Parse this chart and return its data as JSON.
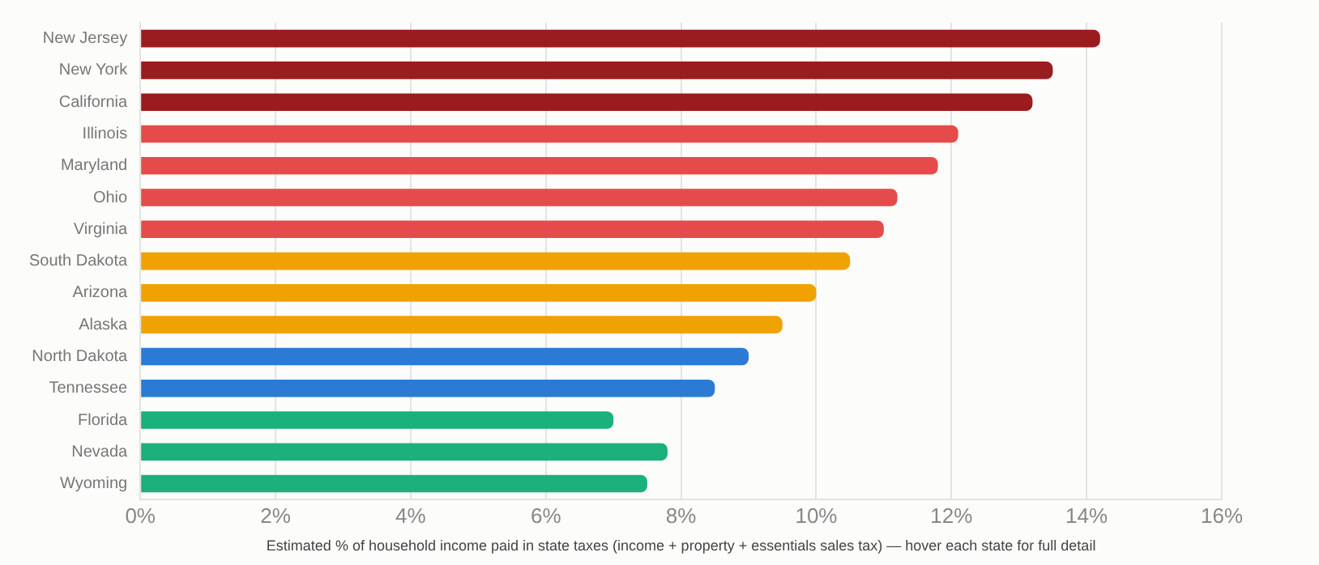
{
  "chart_data": {
    "type": "bar",
    "orientation": "horizontal",
    "xlabel": "Estimated % of household income paid in state taxes (income + property + essentials sales tax) — hover each state for full detail",
    "categories": [
      "New Jersey",
      "New York",
      "California",
      "Illinois",
      "Maryland",
      "Ohio",
      "Virginia",
      "South Dakota",
      "Arizona",
      "Alaska",
      "North Dakota",
      "Tennessee",
      "Florida",
      "Nevada",
      "Wyoming"
    ],
    "values": [
      14.2,
      13.5,
      13.2,
      12.1,
      11.8,
      11.2,
      11.0,
      10.5,
      10.0,
      9.5,
      9.0,
      8.5,
      7.0,
      7.8,
      7.5
    ],
    "colors": [
      "#9b1c1f",
      "#9b1c1f",
      "#9b1c1f",
      "#e54b4b",
      "#e54b4b",
      "#e54b4b",
      "#e54b4b",
      "#f0a202",
      "#f0a202",
      "#f0a202",
      "#2b7bd5",
      "#2b7bd5",
      "#1bb07c",
      "#1bb07c",
      "#1bb07c"
    ],
    "xlim": [
      0,
      16
    ],
    "xticks": [
      {
        "value": 0,
        "label": "0%"
      },
      {
        "value": 2,
        "label": "2%"
      },
      {
        "value": 4,
        "label": "4%"
      },
      {
        "value": 6,
        "label": "6%"
      },
      {
        "value": 8,
        "label": "8%"
      },
      {
        "value": 10,
        "label": "10%"
      },
      {
        "value": 12,
        "label": "12%"
      },
      {
        "value": 14,
        "label": "14%"
      },
      {
        "value": 16,
        "label": "16%"
      }
    ],
    "grid": "x",
    "legend": false
  }
}
